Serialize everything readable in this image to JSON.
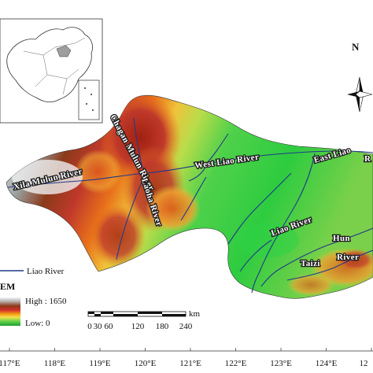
{
  "legend": {
    "title": "EM",
    "river_label": "Liao River",
    "high_label": "High : 1650",
    "low_label": "Low: 0",
    "colors": [
      "#f2f2f2",
      "#cfcfcf",
      "#a67c52",
      "#c0392b",
      "#e74c1a",
      "#f39c12",
      "#f4e04d",
      "#8ed14b",
      "#2ecc40",
      "#1e9e2e"
    ]
  },
  "scale_bar": {
    "unit": "km",
    "ticks": [
      "0",
      "30",
      "60",
      "120",
      "180",
      "240"
    ]
  },
  "north_arrow": {
    "label": "N",
    "icon": "north-arrow-icon"
  },
  "longitude_labels": [
    "117°E",
    "118°E",
    "119°E",
    "120°E",
    "121°E",
    "122°E",
    "123°E",
    "124°E",
    "12"
  ],
  "rivers": {
    "xila_mulun": "Xila Mulun  River",
    "chagan_mulun": "Chagan Mulun River",
    "west_liao": "West Liao River",
    "east_liao": "East Liao",
    "laoha": "Laoha River",
    "liao": "Liao River",
    "hun": "Hun",
    "taizi": "Taizi",
    "taizi_river": "River",
    "right_edge": "R"
  }
}
